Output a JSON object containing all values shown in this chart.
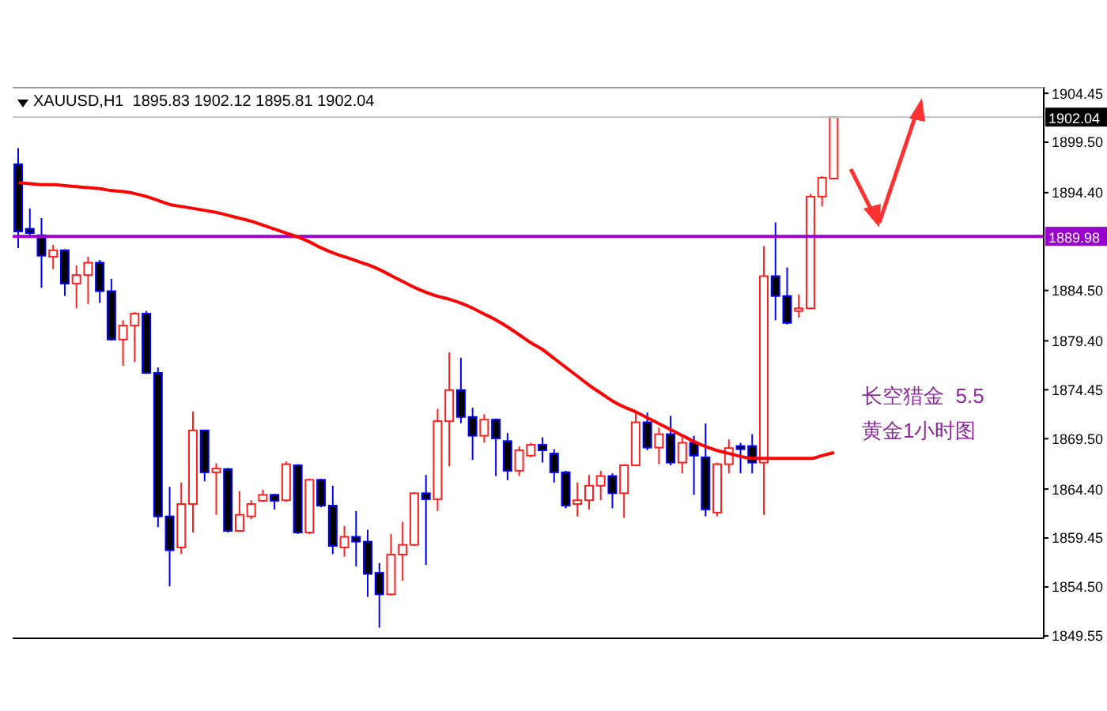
{
  "chart_data": {
    "type": "candlestick",
    "title": "XAUUSD,H1  1895.83 1902.12 1895.81 1902.04",
    "categories": [
      null,
      null,
      null,
      null,
      null,
      null,
      null,
      null,
      null,
      null,
      null,
      null,
      null,
      null,
      null,
      null,
      null,
      null,
      null,
      null,
      null,
      null,
      null,
      null,
      null,
      null,
      null,
      null,
      null,
      null,
      null,
      null,
      null,
      null,
      null,
      null,
      null,
      null,
      null,
      null,
      null,
      null,
      null,
      null,
      null,
      null,
      null,
      null,
      null,
      null,
      null,
      null,
      null,
      null,
      null,
      null,
      null,
      null,
      null,
      null,
      null,
      null,
      null,
      null,
      null,
      null,
      null,
      null,
      null,
      null,
      null
    ],
    "ohlc": [
      [
        1897.27,
        1898.9,
        1888.8,
        1890.47
      ],
      [
        1890.74,
        1892.81,
        1889.93,
        1890.31
      ],
      [
        1890.09,
        1891.83,
        1884.76,
        1888.02
      ],
      [
        1887.91,
        1889.11,
        1886.66,
        1888.57
      ],
      [
        1888.57,
        1888.67,
        1883.94,
        1885.19
      ],
      [
        1885.19,
        1887.04,
        1882.69,
        1886.06
      ],
      [
        1886.06,
        1887.91,
        1883.13,
        1887.31
      ],
      [
        1887.31,
        1887.59,
        1883.24,
        1884.43
      ],
      [
        1884.43,
        1885.68,
        1879.43,
        1879.54
      ],
      [
        1879.54,
        1881.49,
        1876.87,
        1880.95
      ],
      [
        1880.95,
        1882.31,
        1877.25,
        1882.15
      ],
      [
        1882.15,
        1882.42,
        1876.05,
        1876.16
      ],
      [
        1876.16,
        1876.71,
        1860.55,
        1861.64
      ],
      [
        1861.64,
        1864.63,
        1854.57,
        1858.21
      ],
      [
        1858.49,
        1865.07,
        1857.83,
        1862.89
      ],
      [
        1862.89,
        1872.25,
        1860.01,
        1870.34
      ],
      [
        1870.34,
        1870.34,
        1865.18,
        1866.1
      ],
      [
        1866.1,
        1867.02,
        1861.8,
        1866.48
      ],
      [
        1866.43,
        1866.54,
        1860.01,
        1860.17
      ],
      [
        1860.17,
        1864.2,
        1860.17,
        1861.8
      ],
      [
        1861.64,
        1863.27,
        1861.37,
        1862.89
      ],
      [
        1863.22,
        1864.36,
        1863.11,
        1863.82
      ],
      [
        1863.82,
        1863.93,
        1862.34,
        1863.22
      ],
      [
        1863.27,
        1867.19,
        1863.11,
        1866.92
      ],
      [
        1866.81,
        1866.92,
        1859.85,
        1860.01
      ],
      [
        1860.01,
        1865.45,
        1859.85,
        1865.34
      ],
      [
        1865.34,
        1865.45,
        1862.56,
        1862.73
      ],
      [
        1862.73,
        1864.74,
        1857.83,
        1858.65
      ],
      [
        1858.49,
        1860.66,
        1857.56,
        1859.57
      ],
      [
        1859.57,
        1862.18,
        1856.58,
        1859.08
      ],
      [
        1859.08,
        1860.28,
        1853.48,
        1855.82
      ],
      [
        1855.93,
        1856.91,
        1850.38,
        1853.75
      ],
      [
        1853.75,
        1859.85,
        1853.64,
        1857.78
      ],
      [
        1857.78,
        1861.09,
        1855.11,
        1858.76
      ],
      [
        1858.76,
        1864.09,
        1858.65,
        1863.98
      ],
      [
        1863.98,
        1865.83,
        1856.74,
        1863.38
      ],
      [
        1863.38,
        1872.52,
        1862.18,
        1871.27
      ],
      [
        1871.27,
        1878.23,
        1866.7,
        1874.42
      ],
      [
        1874.42,
        1877.69,
        1871.05,
        1871.7
      ],
      [
        1871.7,
        1872.63,
        1867.35,
        1869.8
      ],
      [
        1869.8,
        1871.97,
        1869.09,
        1871.43
      ],
      [
        1871.43,
        1871.54,
        1865.72,
        1869.53
      ],
      [
        1869.26,
        1870.07,
        1865.29,
        1866.26
      ],
      [
        1866.26,
        1868.71,
        1865.72,
        1868.33
      ],
      [
        1867.79,
        1869.09,
        1867.62,
        1868.88
      ],
      [
        1868.88,
        1869.64,
        1867.08,
        1868.33
      ],
      [
        1868.0,
        1868.44,
        1865.07,
        1866.1
      ],
      [
        1866.1,
        1866.26,
        1862.45,
        1862.73
      ],
      [
        1862.89,
        1865.07,
        1861.64,
        1863.27
      ],
      [
        1863.27,
        1865.83,
        1862.34,
        1864.74
      ],
      [
        1864.74,
        1866.26,
        1863.27,
        1865.72
      ],
      [
        1865.72,
        1865.99,
        1862.45,
        1863.98
      ],
      [
        1863.98,
        1866.92,
        1861.48,
        1866.81
      ],
      [
        1866.81,
        1872.14,
        1866.7,
        1871.16
      ],
      [
        1871.16,
        1872.14,
        1868.33,
        1868.6
      ],
      [
        1868.6,
        1870.61,
        1866.92,
        1869.96
      ],
      [
        1869.96,
        1871.81,
        1866.81,
        1867.08
      ],
      [
        1867.08,
        1869.64,
        1865.99,
        1869.09
      ],
      [
        1869.09,
        1869.8,
        1863.82,
        1867.79
      ],
      [
        1867.62,
        1871.05,
        1861.64,
        1862.34
      ],
      [
        1862.02,
        1867.08,
        1861.64,
        1866.92
      ],
      [
        1866.92,
        1869.42,
        1865.99,
        1868.55
      ],
      [
        1868.76,
        1869.09,
        1865.99,
        1868.44
      ],
      [
        1868.76,
        1869.96,
        1865.99,
        1867.08
      ],
      [
        1867.08,
        1889.0,
        1861.8,
        1885.95
      ],
      [
        1885.95,
        1891.39,
        1881.49,
        1883.94
      ],
      [
        1883.94,
        1886.83,
        1881.06,
        1881.22
      ],
      [
        1882.42,
        1884.1,
        1881.76,
        1882.69
      ],
      [
        1882.69,
        1894.28,
        1882.69,
        1894.0
      ],
      [
        1894.0,
        1896.07,
        1893.02,
        1895.91
      ],
      [
        1895.83,
        1902.12,
        1895.81,
        1902.04
      ]
    ],
    "series": [
      {
        "type": "line",
        "color": "#ff0000",
        "values": [
          1895.4,
          1895.3,
          1895.2,
          1895.2,
          1895.1,
          1895.0,
          1894.9,
          1894.8,
          1894.6,
          1894.5,
          1894.3,
          1894.0,
          1893.6,
          1893.2,
          1893.0,
          1892.8,
          1892.6,
          1892.4,
          1892.1,
          1891.8,
          1891.5,
          1891.1,
          1890.7,
          1890.3,
          1889.9,
          1889.4,
          1888.8,
          1888.3,
          1887.9,
          1887.5,
          1887.1,
          1886.6,
          1886.0,
          1885.4,
          1884.8,
          1884.3,
          1883.9,
          1883.6,
          1883.2,
          1882.7,
          1882.1,
          1881.5,
          1880.8,
          1880.0,
          1879.2,
          1878.5,
          1877.6,
          1876.7,
          1875.8,
          1874.9,
          1874.1,
          1873.3,
          1872.7,
          1872.2,
          1871.6,
          1871.0,
          1870.4,
          1869.8,
          1869.2,
          1868.7,
          1868.3,
          1868.0,
          1867.7,
          1867.5,
          1867.5,
          1867.5,
          1867.5,
          1867.5,
          1867.5,
          1867.8,
          1868.1
        ]
      }
    ],
    "ylim": [
      1849.3,
      1905.1
    ],
    "yticks": [
      1849.55,
      {
        "value": 1854.5,
        "label": "1854.50"
      },
      1859.45,
      {
        "value": 1864.4,
        "label": "1864.40"
      },
      {
        "value": 1869.5,
        "label": "1869.50"
      },
      1874.45,
      {
        "value": 1879.4,
        "label": "1879.40"
      },
      {
        "value": 1884.5,
        "label": "1884.50"
      },
      {
        "value": 1894.4,
        "label": "1894.40"
      },
      {
        "value": 1899.5,
        "label": "1899.50"
      },
      1904.45
    ],
    "ref_lines": [
      {
        "axis": "y",
        "value": 1889.98,
        "label": "1889.98",
        "color": "#9900cc"
      },
      {
        "axis": "y",
        "value": 1902.04,
        "label": "1902.04",
        "color": "#c0c0c0"
      }
    ],
    "annotations": [
      "长空猎金  5.5",
      "黄金1小时图"
    ],
    "tick_labels": "y"
  }
}
